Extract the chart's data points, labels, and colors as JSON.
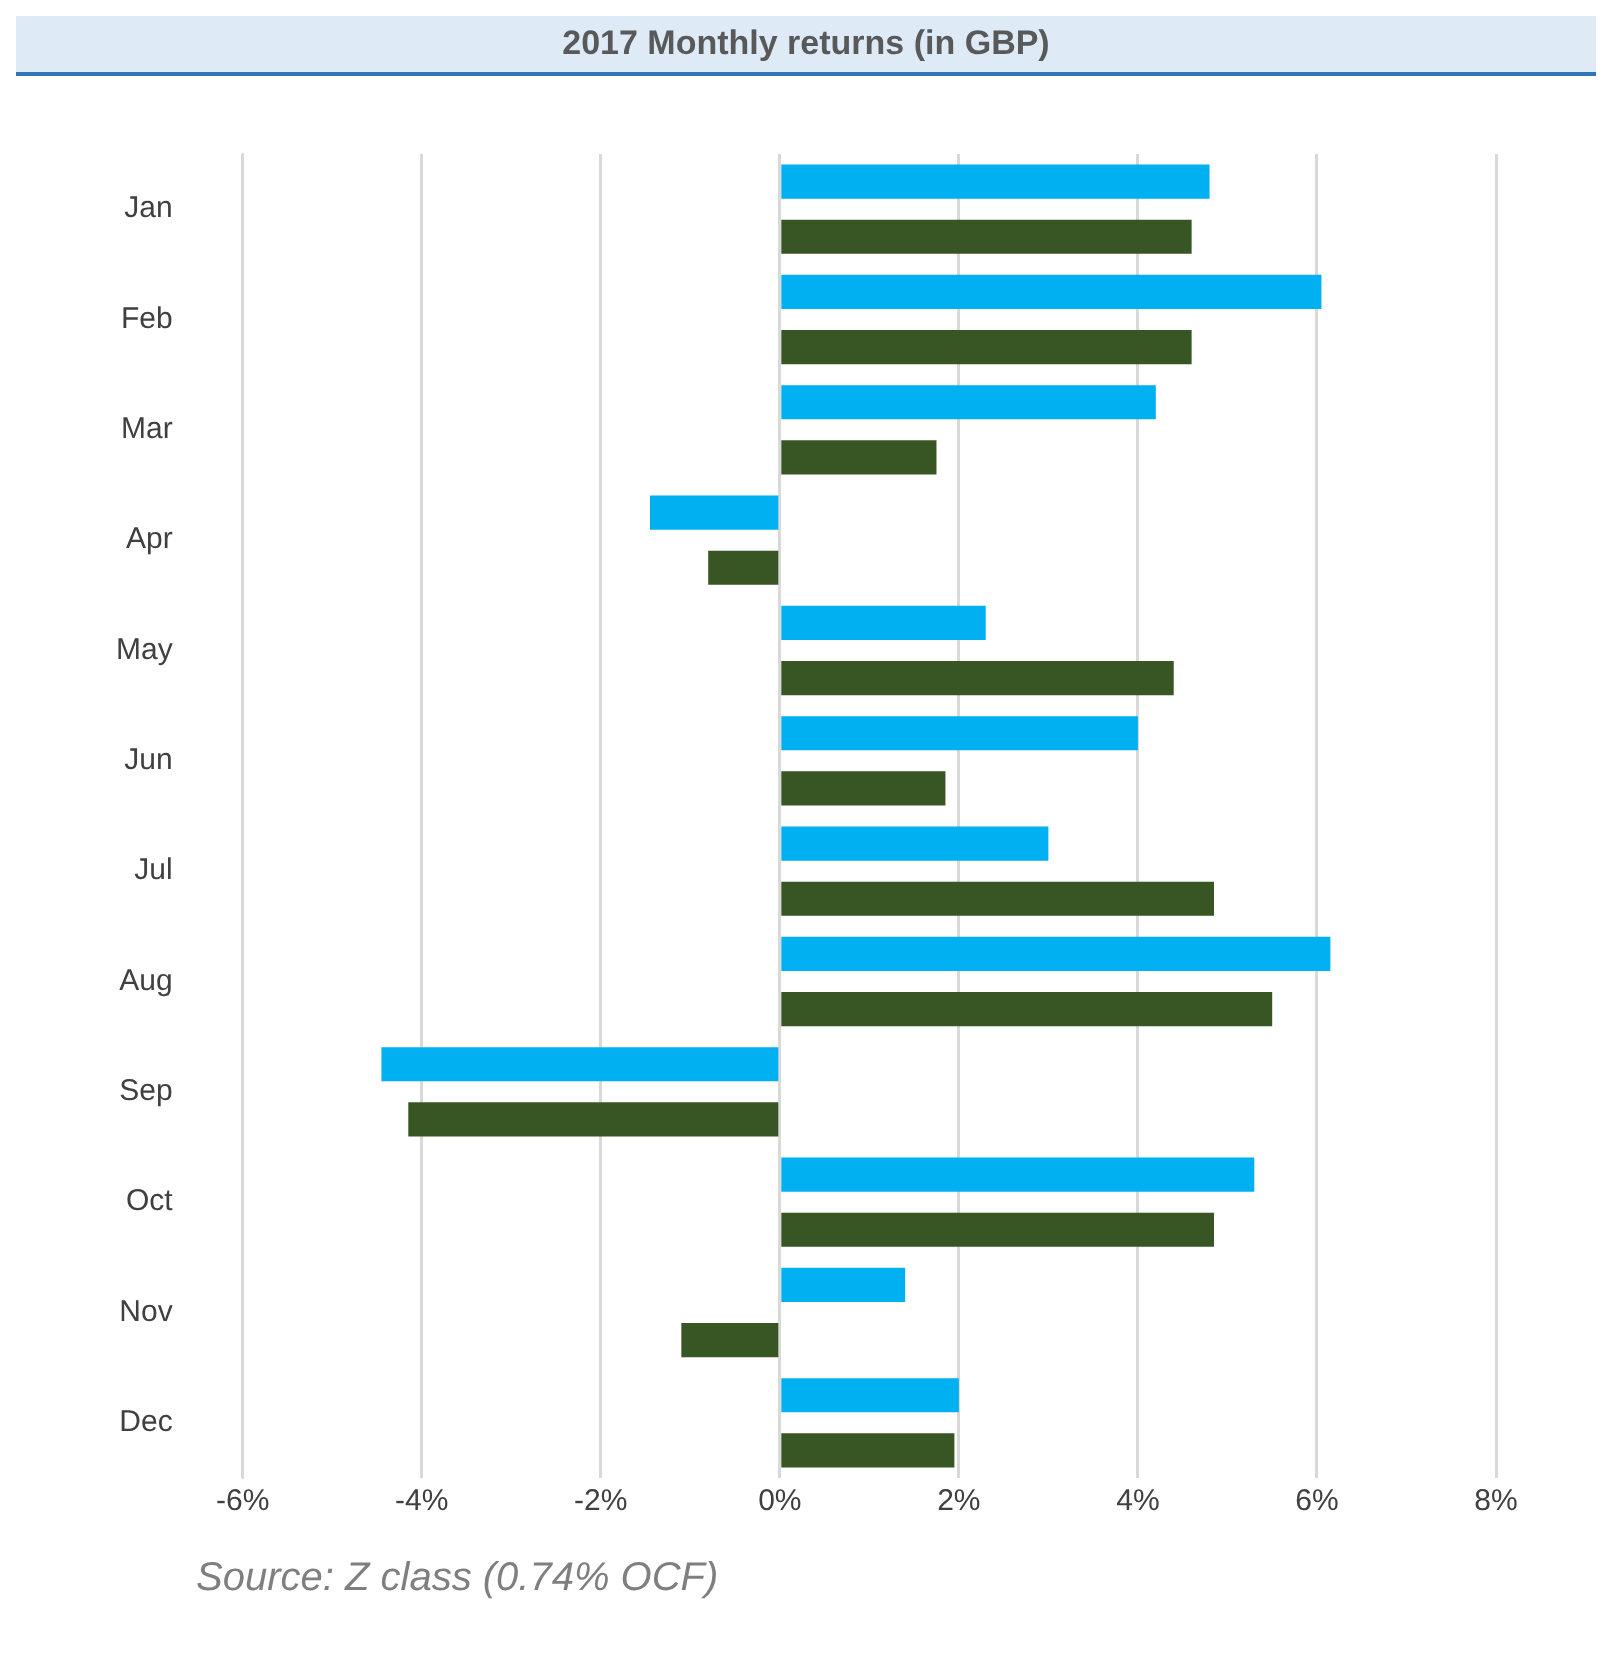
{
  "chart_data": {
    "type": "bar",
    "orientation": "horizontal",
    "title": "2017 Monthly returns (in GBP)",
    "categories": [
      "Jan",
      "Feb",
      "Mar",
      "Apr",
      "May",
      "Jun",
      "Jul",
      "Aug",
      "Sep",
      "Oct",
      "Nov",
      "Dec"
    ],
    "series": [
      {
        "color": "#00b0f0",
        "values": [
          4.8,
          6.05,
          4.2,
          -1.45,
          2.3,
          4.0,
          3.0,
          6.15,
          -4.45,
          5.3,
          1.4,
          2.0
        ]
      },
      {
        "color": "#375623",
        "values": [
          4.6,
          4.6,
          1.75,
          -0.8,
          4.4,
          1.85,
          4.85,
          5.5,
          -4.15,
          4.85,
          -1.1,
          1.95
        ]
      }
    ],
    "xlim": [
      -6,
      8
    ],
    "xticks": [
      {
        "value": -6,
        "label": "-6%"
      },
      {
        "value": -4,
        "label": "-4%"
      },
      {
        "value": -2,
        "label": "-2%"
      },
      {
        "value": 0,
        "label": "0%"
      },
      {
        "value": 2,
        "label": "2%"
      },
      {
        "value": 4,
        "label": "4%"
      },
      {
        "value": 6,
        "label": "6%"
      },
      {
        "value": 8,
        "label": "8%"
      }
    ],
    "grid": "x",
    "legend": false,
    "annotations": [
      "Source: Z class (0.74% OCF)"
    ]
  }
}
